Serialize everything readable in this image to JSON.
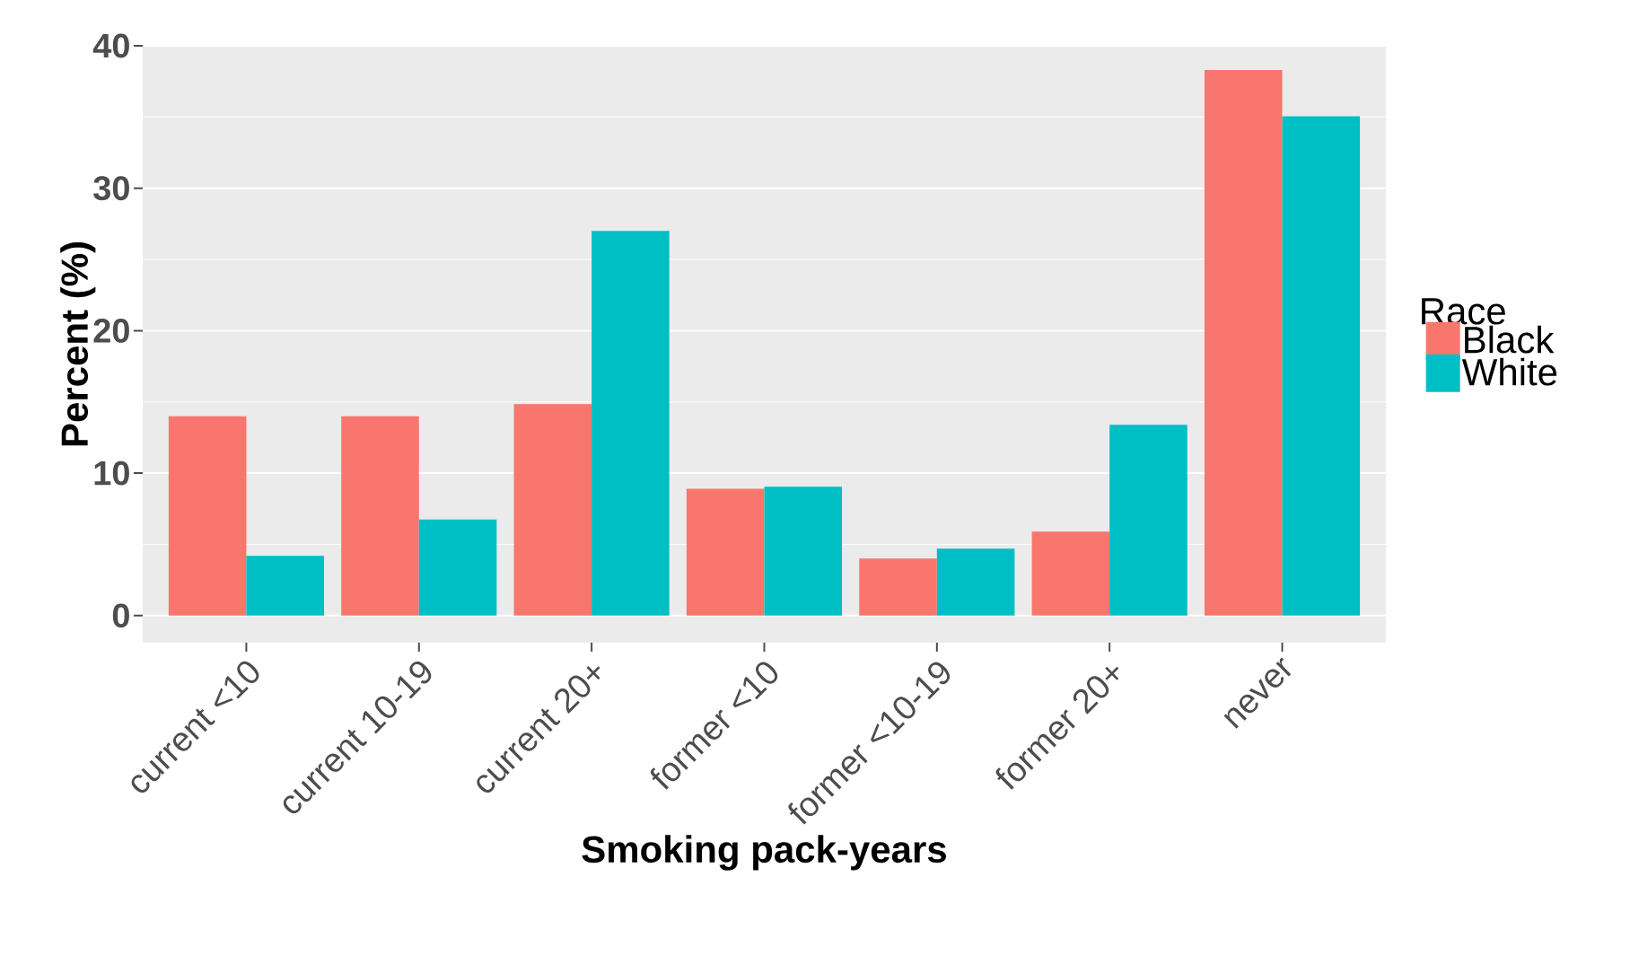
{
  "chart_data": {
    "type": "bar",
    "xlabel": "Smoking pack-years",
    "ylabel": "Percent (%)",
    "legend_title": "Race",
    "categories": [
      "current <10",
      "current 10-19",
      "current 20+",
      "former <10",
      "former <10-19",
      "former 20+",
      "never"
    ],
    "series": [
      {
        "name": "Black",
        "color": "#f8766d",
        "values": [
          14.0,
          14.0,
          14.85,
          8.9,
          4.0,
          5.9,
          38.3
        ]
      },
      {
        "name": "White",
        "color": "#00bfc4",
        "values": [
          4.2,
          6.75,
          27.0,
          9.05,
          4.7,
          13.4,
          35.05
        ]
      }
    ],
    "ylim": [
      -1.9,
      40
    ],
    "yticks": [
      0,
      10,
      20,
      30,
      40
    ],
    "grid": "y",
    "legend": "right"
  }
}
